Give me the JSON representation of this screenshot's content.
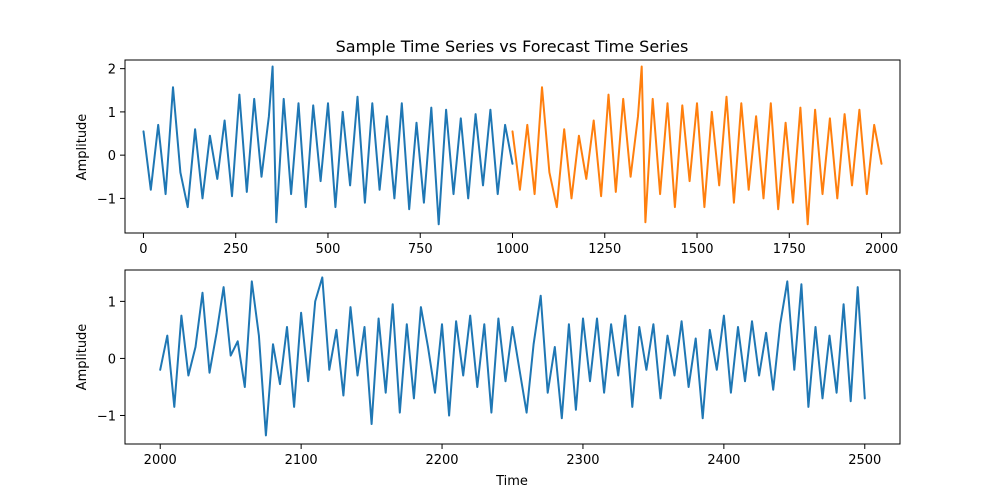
{
  "chart_data": [
    {
      "type": "line",
      "title": "Sample Time Series vs Forecast Time Series",
      "xlabel": "",
      "ylabel": "Amplitude",
      "xlim": [
        -50,
        2050
      ],
      "ylim": [
        -1.8,
        2.2
      ],
      "xticks": [
        0,
        250,
        500,
        750,
        1000,
        1250,
        1500,
        1750,
        2000
      ],
      "xtick_labels": [
        "0",
        "250",
        "500",
        "750",
        "1000",
        "1250",
        "1500",
        "1750",
        "2000"
      ],
      "yticks": [
        -1,
        0,
        1,
        2
      ],
      "ytick_labels": [
        "−1",
        "0",
        "1",
        "2"
      ],
      "grid": false,
      "series": [
        {
          "color": "#1f77b4",
          "x": [
            0,
            20,
            40,
            60,
            80,
            100,
            120,
            140,
            160,
            180,
            200,
            220,
            240,
            260,
            280,
            300,
            320,
            340,
            350,
            360,
            380,
            400,
            420,
            440,
            460,
            480,
            500,
            520,
            540,
            560,
            580,
            600,
            620,
            640,
            660,
            680,
            700,
            720,
            740,
            760,
            780,
            800,
            820,
            840,
            860,
            880,
            900,
            920,
            940,
            960,
            980,
            1000
          ],
          "values": [
            0.55,
            -0.8,
            0.7,
            -0.9,
            1.57,
            -0.4,
            -1.2,
            0.6,
            -1.0,
            0.45,
            -0.55,
            0.8,
            -0.95,
            1.4,
            -0.85,
            1.3,
            -0.5,
            0.9,
            2.05,
            -1.55,
            1.3,
            -0.9,
            1.2,
            -1.2,
            1.15,
            -0.6,
            1.2,
            -1.2,
            1.0,
            -0.7,
            1.35,
            -1.1,
            1.2,
            -0.8,
            0.9,
            -1.0,
            1.2,
            -1.25,
            0.75,
            -1.1,
            1.1,
            -1.6,
            1.05,
            -0.9,
            0.85,
            -1.0,
            0.95,
            -0.7,
            1.05,
            -0.9,
            0.7,
            -0.2
          ]
        },
        {
          "color": "#ff7f0e",
          "x": [
            1000,
            1020,
            1040,
            1060,
            1080,
            1100,
            1120,
            1140,
            1160,
            1180,
            1200,
            1220,
            1240,
            1260,
            1280,
            1300,
            1320,
            1340,
            1350,
            1360,
            1380,
            1400,
            1420,
            1440,
            1460,
            1480,
            1500,
            1520,
            1540,
            1560,
            1580,
            1600,
            1620,
            1640,
            1660,
            1680,
            1700,
            1720,
            1740,
            1760,
            1780,
            1800,
            1820,
            1840,
            1860,
            1880,
            1900,
            1920,
            1940,
            1960,
            1980,
            2000
          ],
          "values": [
            0.55,
            -0.8,
            0.7,
            -0.9,
            1.57,
            -0.4,
            -1.2,
            0.6,
            -1.0,
            0.45,
            -0.55,
            0.8,
            -0.95,
            1.4,
            -0.85,
            1.3,
            -0.5,
            0.9,
            2.05,
            -1.55,
            1.3,
            -0.9,
            1.2,
            -1.2,
            1.15,
            -0.6,
            1.2,
            -1.2,
            1.0,
            -0.7,
            1.35,
            -1.1,
            1.2,
            -0.8,
            0.9,
            -1.0,
            1.2,
            -1.25,
            0.75,
            -1.1,
            1.1,
            -1.6,
            1.05,
            -0.9,
            0.85,
            -1.0,
            0.95,
            -0.7,
            1.05,
            -0.9,
            0.7,
            -0.2
          ]
        }
      ]
    },
    {
      "type": "line",
      "title": "",
      "xlabel": "Time",
      "ylabel": "Amplitude",
      "xlim": [
        1975,
        2525
      ],
      "ylim": [
        -1.5,
        1.55
      ],
      "xticks": [
        2000,
        2100,
        2200,
        2300,
        2400,
        2500
      ],
      "xtick_labels": [
        "2000",
        "2100",
        "2200",
        "2300",
        "2400",
        "2500"
      ],
      "yticks": [
        -1,
        0,
        1
      ],
      "ytick_labels": [
        "−1",
        "0",
        "1"
      ],
      "grid": false,
      "series": [
        {
          "color": "#1f77b4",
          "x": [
            2000,
            2005,
            2010,
            2015,
            2020,
            2025,
            2030,
            2035,
            2040,
            2045,
            2050,
            2055,
            2060,
            2065,
            2070,
            2075,
            2080,
            2085,
            2090,
            2095,
            2100,
            2105,
            2110,
            2115,
            2120,
            2125,
            2130,
            2135,
            2140,
            2145,
            2150,
            2155,
            2160,
            2165,
            2170,
            2175,
            2180,
            2185,
            2190,
            2195,
            2200,
            2205,
            2210,
            2215,
            2220,
            2225,
            2230,
            2235,
            2240,
            2245,
            2250,
            2255,
            2260,
            2265,
            2270,
            2275,
            2280,
            2285,
            2290,
            2295,
            2300,
            2305,
            2310,
            2315,
            2320,
            2325,
            2330,
            2335,
            2340,
            2345,
            2350,
            2355,
            2360,
            2365,
            2370,
            2375,
            2380,
            2385,
            2390,
            2395,
            2400,
            2405,
            2410,
            2415,
            2420,
            2425,
            2430,
            2435,
            2440,
            2445,
            2450,
            2455,
            2460,
            2465,
            2470,
            2475,
            2480,
            2485,
            2490,
            2495,
            2500
          ],
          "values": [
            -0.2,
            0.4,
            -0.85,
            0.75,
            -0.3,
            0.2,
            1.15,
            -0.25,
            0.45,
            1.25,
            0.05,
            0.3,
            -0.5,
            1.35,
            0.4,
            -1.35,
            0.25,
            -0.45,
            0.55,
            -0.85,
            0.8,
            -0.4,
            1.0,
            1.42,
            -0.2,
            0.5,
            -0.65,
            0.9,
            -0.3,
            0.55,
            -1.15,
            0.7,
            -0.6,
            0.95,
            -0.95,
            0.6,
            -0.7,
            0.9,
            0.2,
            -0.6,
            0.6,
            -1.0,
            0.65,
            -0.3,
            0.75,
            -0.5,
            0.6,
            -0.95,
            0.7,
            -0.4,
            0.55,
            -0.2,
            -0.95,
            0.25,
            1.1,
            -0.6,
            0.2,
            -1.05,
            0.6,
            -0.9,
            0.7,
            -0.4,
            0.7,
            -0.6,
            0.6,
            -0.3,
            0.75,
            -0.85,
            0.55,
            -0.2,
            0.6,
            -0.7,
            0.4,
            -0.3,
            0.65,
            -0.5,
            0.35,
            -1.05,
            0.5,
            -0.2,
            0.75,
            -0.6,
            0.55,
            -0.4,
            0.65,
            -0.3,
            0.45,
            -0.55,
            0.6,
            1.35,
            -0.2,
            1.3,
            -0.85,
            0.55,
            -0.7,
            0.4,
            -0.6,
            0.95,
            -0.75,
            1.25,
            -0.7
          ]
        }
      ]
    }
  ]
}
